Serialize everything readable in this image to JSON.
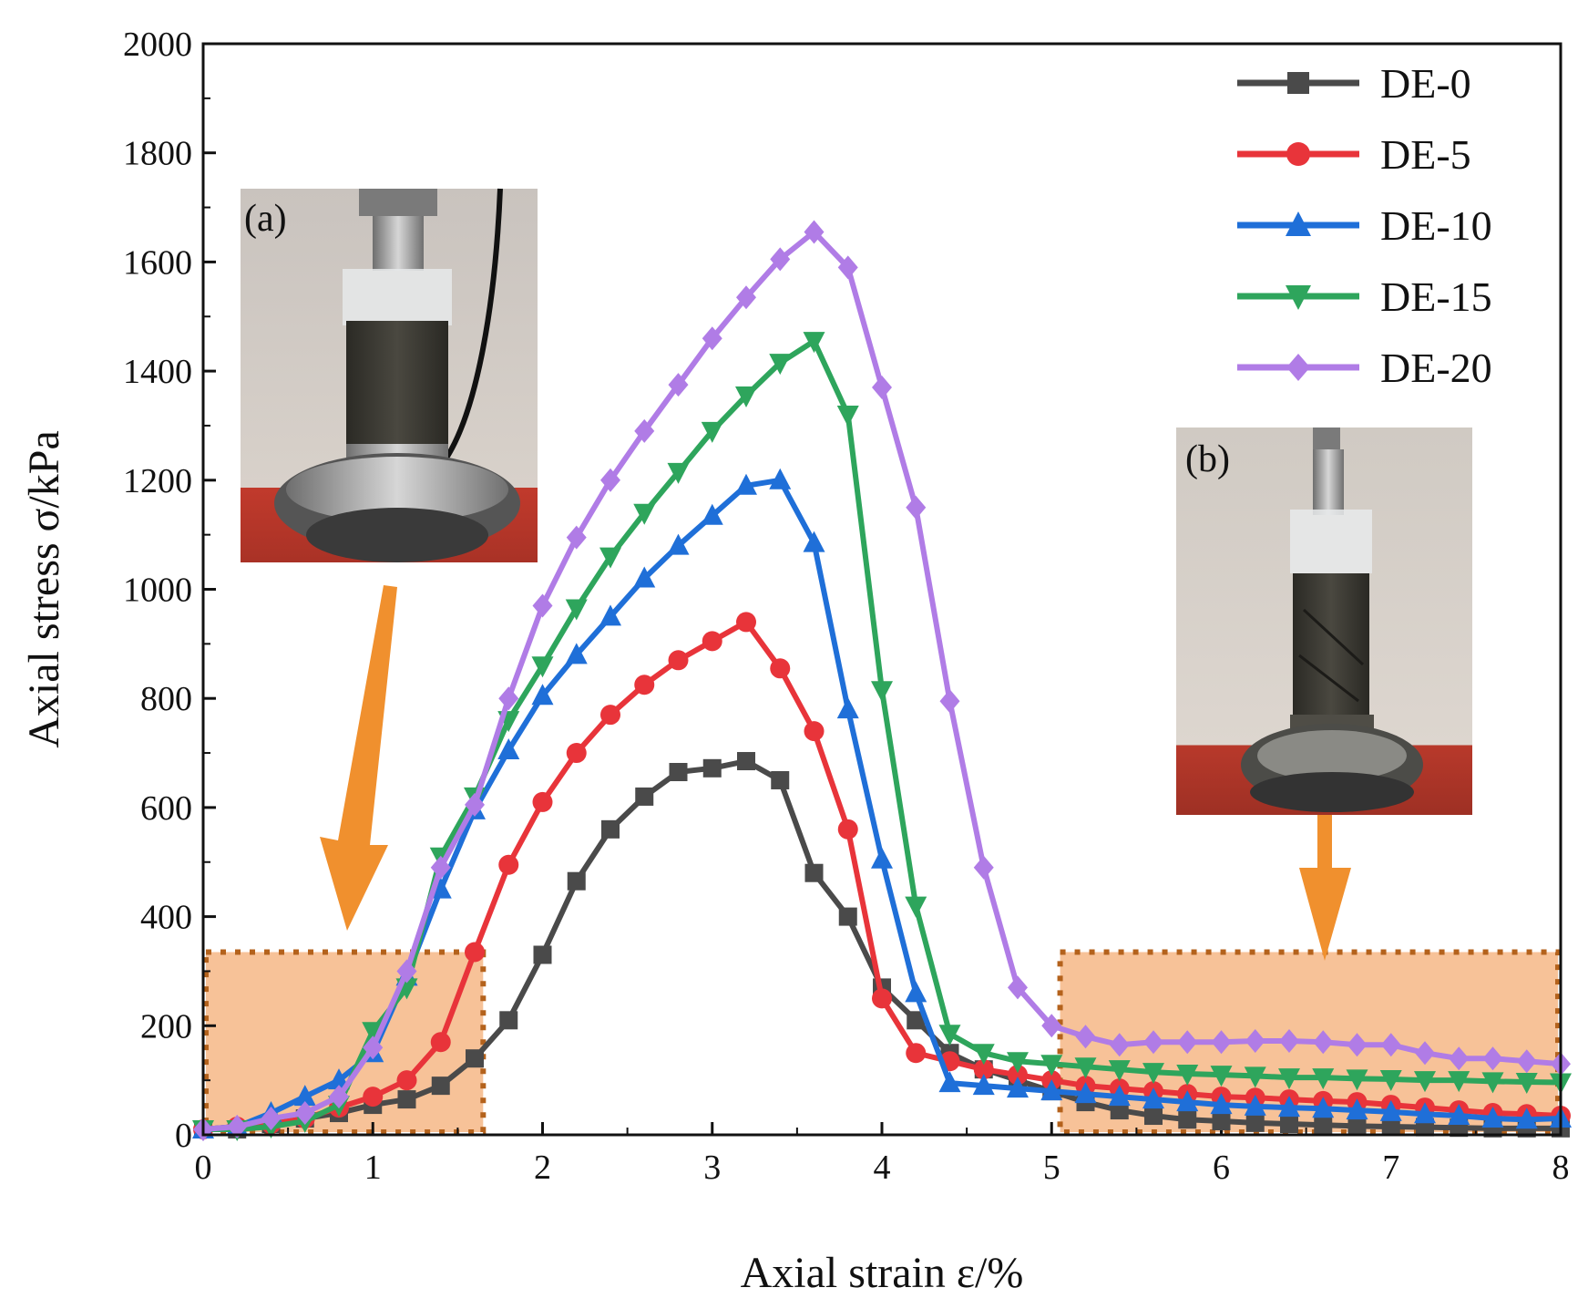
{
  "chart_data": {
    "type": "line",
    "title": "",
    "xlabel": "Axial strain ε/%",
    "ylabel": "Axial stress σ/kPa",
    "xlim": [
      0,
      8
    ],
    "ylim": [
      0,
      2000
    ],
    "xticks": [
      0,
      1,
      2,
      3,
      4,
      5,
      6,
      7,
      8
    ],
    "yticks": [
      0,
      200,
      400,
      600,
      800,
      1000,
      1200,
      1400,
      1600,
      1800,
      2000
    ],
    "legend_position": "top-right",
    "x": [
      0.0,
      0.2,
      0.4,
      0.6,
      0.8,
      1.0,
      1.2,
      1.4,
      1.6,
      1.8,
      2.0,
      2.2,
      2.4,
      2.6,
      2.8,
      3.0,
      3.2,
      3.4,
      3.6,
      3.8,
      4.0,
      4.2,
      4.4,
      4.6,
      4.8,
      5.0,
      5.2,
      5.4,
      5.6,
      5.8,
      6.0,
      6.2,
      6.4,
      6.6,
      6.8,
      7.0,
      7.2,
      7.4,
      7.6,
      7.8,
      8.0
    ],
    "series": [
      {
        "name": "DE-0",
        "color": "#4a4a4a",
        "marker": "square",
        "values": [
          10,
          10,
          20,
          30,
          40,
          55,
          65,
          90,
          140,
          210,
          330,
          465,
          560,
          620,
          665,
          672,
          685,
          650,
          480,
          400,
          270,
          210,
          150,
          120,
          100,
          80,
          60,
          45,
          35,
          28,
          25,
          22,
          20,
          18,
          16,
          15,
          14,
          13,
          12,
          12,
          12
        ]
      },
      {
        "name": "DE-5",
        "color": "#e8343a",
        "marker": "circle",
        "values": [
          10,
          15,
          20,
          30,
          50,
          70,
          100,
          170,
          335,
          495,
          610,
          700,
          770,
          825,
          870,
          905,
          940,
          855,
          740,
          560,
          250,
          150,
          135,
          120,
          110,
          100,
          90,
          85,
          80,
          75,
          70,
          68,
          65,
          62,
          60,
          55,
          50,
          45,
          40,
          38,
          35
        ]
      },
      {
        "name": "DE-10",
        "color": "#1f6fd8",
        "marker": "triangle-up",
        "values": [
          10,
          15,
          40,
          70,
          100,
          150,
          290,
          450,
          595,
          705,
          805,
          880,
          950,
          1020,
          1080,
          1135,
          1190,
          1200,
          1085,
          780,
          505,
          260,
          95,
          90,
          85,
          80,
          75,
          70,
          65,
          60,
          55,
          52,
          50,
          48,
          45,
          42,
          38,
          35,
          30,
          28,
          30
        ]
      },
      {
        "name": "DE-15",
        "color": "#2ea55c",
        "marker": "triangle-down",
        "values": [
          10,
          10,
          15,
          25,
          55,
          190,
          270,
          510,
          620,
          760,
          860,
          965,
          1060,
          1140,
          1215,
          1290,
          1355,
          1415,
          1455,
          1320,
          815,
          420,
          185,
          150,
          135,
          130,
          125,
          120,
          115,
          112,
          110,
          108,
          105,
          105,
          103,
          102,
          100,
          100,
          98,
          97,
          96
        ]
      },
      {
        "name": "DE-20",
        "color": "#b07ce6",
        "marker": "diamond",
        "values": [
          10,
          15,
          30,
          40,
          70,
          160,
          300,
          490,
          605,
          800,
          970,
          1095,
          1200,
          1290,
          1375,
          1460,
          1535,
          1605,
          1655,
          1590,
          1370,
          1150,
          795,
          490,
          270,
          200,
          180,
          165,
          170,
          170,
          170,
          172,
          172,
          170,
          165,
          165,
          150,
          140,
          140,
          135,
          130
        ]
      }
    ],
    "annotations": [
      {
        "label": "(a)",
        "description": "specimen photo at start of test, arrow pointing to low-strain region"
      },
      {
        "label": "(b)",
        "description": "specimen photo after failure, arrow pointing to residual-strength region"
      }
    ],
    "highlight_regions": [
      {
        "x_range": [
          0,
          1.65
        ],
        "y_range": [
          0,
          335
        ]
      },
      {
        "x_range": [
          5.05,
          8
        ],
        "y_range": [
          0,
          335
        ]
      }
    ]
  }
}
